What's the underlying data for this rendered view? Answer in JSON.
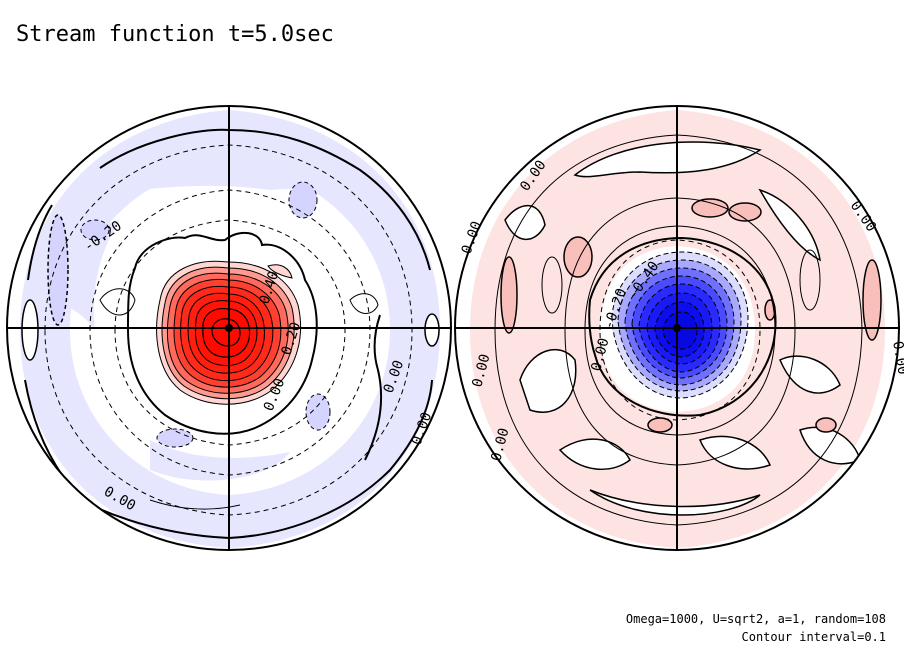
{
  "title": "Stream function t=5.0sec",
  "footer": {
    "params": "Omega=1000, U=sqrt2, a=1, random=108",
    "interval": "Contour interval=0.1"
  },
  "colors": {
    "positive_fill": "#ff2a1a",
    "positive_light": "#fde3e1",
    "negative_fill": "#2a2aff",
    "negative_light": "#e6e6ff",
    "line": "#000000"
  },
  "left_panel": {
    "labels": [
      "-0.20",
      "0.40",
      "0.20",
      "0.00",
      "0.00",
      "0.00",
      "0.00"
    ]
  },
  "right_panel": {
    "labels": [
      "0.00",
      "0.00",
      "0.00",
      "-0.20",
      "-0.40",
      "0.00",
      "0.00",
      "0.00",
      "0.00"
    ]
  }
}
